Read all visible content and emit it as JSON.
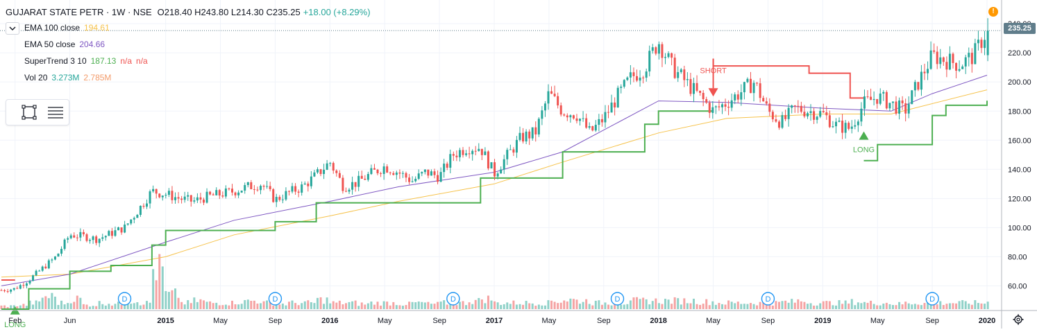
{
  "header": {
    "symbol": "GUJARAT STATE PETR · 1W · NSE",
    "ohlc": "O218.40 H243.80 L214.30 C235.25",
    "change": "+18.00 (+8.29%)"
  },
  "indicators": [
    {
      "name": "EMA 100 close",
      "values": [
        "194.61"
      ],
      "colors": [
        "#f6c24a"
      ]
    },
    {
      "name": "EMA 50 close",
      "values": [
        "204.66"
      ],
      "colors": [
        "#7e57c2"
      ]
    },
    {
      "name": "SuperTrend 3 10",
      "values": [
        "187.13",
        "n/a",
        "n/a"
      ],
      "colors": [
        "#4caf50",
        "#ef5350",
        "#ef5350"
      ]
    },
    {
      "name": "Vol 20",
      "values": [
        "3.273M",
        "2.785M"
      ],
      "colors": [
        "#26a69a",
        "#f39c6b"
      ]
    }
  ],
  "toolbar": {
    "icons": [
      "rectangle-tool-icon",
      "lines-tool-icon"
    ],
    "collapse_icon": "chevron-down-icon",
    "alert_icon": "alert-icon",
    "alert_glyph": "!",
    "settings_icon": "gear-icon"
  },
  "last_price": "235.25",
  "colors": {
    "up": "#26a69a",
    "down": "#ef5350",
    "ema100": "#f6c24a",
    "ema50": "#7e57c2",
    "st_up": "#4caf50",
    "st_down": "#ef5350",
    "vol_up": "#8fd1c8",
    "vol_down": "#f5a3a3",
    "grid": "#f0f3fa",
    "axis_text": "#131722",
    "dividend": "#2196f3"
  },
  "signals": [
    {
      "label": "LONG",
      "color": "#4caf50",
      "date": "2014-02"
    },
    {
      "label": "SHORT",
      "color": "#ef5350",
      "date": "2018-05"
    },
    {
      "label": "LONG",
      "color": "#4caf50",
      "date": "2019-04"
    }
  ],
  "dividend_label": "D",
  "chart_data": {
    "type": "candlestick",
    "title": "GUJARAT STATE PETR · 1W · NSE",
    "y_ticks": [
      "240.00",
      "220.00",
      "200.00",
      "180.00",
      "160.00",
      "140.00",
      "120.00",
      "100.00",
      "80.00",
      "60.00"
    ],
    "ylim": [
      44,
      242
    ],
    "x_ticks": [
      "Feb",
      "Jun",
      "2015",
      "May",
      "Sep",
      "2016",
      "May",
      "Sep",
      "2017",
      "May",
      "Sep",
      "2018",
      "May",
      "Sep",
      "2019",
      "May",
      "Sep",
      "2020"
    ],
    "x_range": [
      "2014-01",
      "2020-01"
    ],
    "price_anchors": [
      [
        "2014-01",
        57
      ],
      [
        "2014-02",
        58
      ],
      [
        "2014-03",
        64
      ],
      [
        "2014-04",
        72
      ],
      [
        "2014-05",
        80
      ],
      [
        "2014-06",
        95
      ],
      [
        "2014-07",
        94
      ],
      [
        "2014-08",
        92
      ],
      [
        "2014-09",
        96
      ],
      [
        "2014-10",
        100
      ],
      [
        "2014-11",
        112
      ],
      [
        "2014-12",
        125
      ],
      [
        "2015-01",
        123
      ],
      [
        "2015-02",
        120
      ],
      [
        "2015-03",
        118
      ],
      [
        "2015-04",
        121
      ],
      [
        "2015-05",
        123
      ],
      [
        "2015-06",
        125
      ],
      [
        "2015-07",
        128
      ],
      [
        "2015-08",
        130
      ],
      [
        "2015-09",
        119
      ],
      [
        "2015-10",
        124
      ],
      [
        "2015-11",
        128
      ],
      [
        "2015-12",
        136
      ],
      [
        "2016-01",
        145
      ],
      [
        "2016-02",
        128
      ],
      [
        "2016-03",
        131
      ],
      [
        "2016-04",
        137
      ],
      [
        "2016-05",
        142
      ],
      [
        "2016-06",
        138
      ],
      [
        "2016-07",
        132
      ],
      [
        "2016-08",
        138
      ],
      [
        "2016-09",
        135
      ],
      [
        "2016-10",
        150
      ],
      [
        "2016-11",
        155
      ],
      [
        "2016-12",
        155
      ],
      [
        "2017-01",
        137
      ],
      [
        "2017-02",
        150
      ],
      [
        "2017-03",
        162
      ],
      [
        "2017-04",
        165
      ],
      [
        "2017-05",
        192
      ],
      [
        "2017-06",
        180
      ],
      [
        "2017-07",
        178
      ],
      [
        "2017-08",
        165
      ],
      [
        "2017-09",
        175
      ],
      [
        "2017-10",
        190
      ],
      [
        "2017-11",
        203
      ],
      [
        "2017-12",
        210
      ],
      [
        "2018-01",
        228
      ],
      [
        "2018-02",
        210
      ],
      [
        "2018-03",
        200
      ],
      [
        "2018-04",
        190
      ],
      [
        "2018-05",
        180
      ],
      [
        "2018-06",
        186
      ],
      [
        "2018-07",
        193
      ],
      [
        "2018-08",
        200
      ],
      [
        "2018-09",
        180
      ],
      [
        "2018-10",
        172
      ],
      [
        "2018-11",
        182
      ],
      [
        "2018-12",
        180
      ],
      [
        "2019-01",
        178
      ],
      [
        "2019-02",
        170
      ],
      [
        "2019-03",
        168
      ],
      [
        "2019-04",
        185
      ],
      [
        "2019-05",
        190
      ],
      [
        "2019-06",
        185
      ],
      [
        "2019-07",
        180
      ],
      [
        "2019-08",
        200
      ],
      [
        "2019-09",
        218
      ],
      [
        "2019-10",
        215
      ],
      [
        "2019-11",
        212
      ],
      [
        "2019-12",
        218
      ],
      [
        "2020-01",
        235.25
      ]
    ],
    "series": [
      {
        "name": "EMA 100 close",
        "points": [
          [
            "2014-01",
            66
          ],
          [
            "2014-06",
            68
          ],
          [
            "2015-01",
            80
          ],
          [
            "2015-06",
            95
          ],
          [
            "2016-01",
            108
          ],
          [
            "2016-06",
            118
          ],
          [
            "2017-01",
            130
          ],
          [
            "2017-06",
            145
          ],
          [
            "2018-01",
            165
          ],
          [
            "2018-06",
            175
          ],
          [
            "2019-01",
            178
          ],
          [
            "2019-06",
            178
          ],
          [
            "2020-01",
            194.61
          ]
        ]
      },
      {
        "name": "EMA 50 close",
        "points": [
          [
            "2014-01",
            60
          ],
          [
            "2014-06",
            68
          ],
          [
            "2015-01",
            90
          ],
          [
            "2015-06",
            105
          ],
          [
            "2016-01",
            118
          ],
          [
            "2016-06",
            128
          ],
          [
            "2017-01",
            138
          ],
          [
            "2017-06",
            152
          ],
          [
            "2018-01",
            187
          ],
          [
            "2018-06",
            186
          ],
          [
            "2019-01",
            182
          ],
          [
            "2019-06",
            180
          ],
          [
            "2019-09",
            192
          ],
          [
            "2020-01",
            204.66
          ]
        ]
      },
      {
        "name": "SuperTrend 3 10",
        "up_points": [
          [
            "2014-01",
            44
          ],
          [
            "2014-03",
            58
          ],
          [
            "2014-06",
            70
          ],
          [
            "2014-09",
            74
          ],
          [
            "2014-12",
            88
          ],
          [
            "2015-01",
            98
          ],
          [
            "2015-08",
            98
          ],
          [
            "2015-09",
            104
          ],
          [
            "2015-11",
            104
          ],
          [
            "2015-12",
            117
          ],
          [
            "2016-11",
            117
          ],
          [
            "2016-12",
            134
          ],
          [
            "2017-05",
            134
          ],
          [
            "2017-06",
            152
          ],
          [
            "2017-11",
            152
          ],
          [
            "2017-12",
            171
          ],
          [
            "2018-01",
            180
          ],
          [
            "2018-05",
            180
          ]
        ],
        "up_points_2": [
          [
            "2019-04",
            146
          ],
          [
            "2019-05",
            157
          ],
          [
            "2019-08",
            157
          ],
          [
            "2019-09",
            177
          ],
          [
            "2019-10",
            184
          ],
          [
            "2020-01",
            184
          ],
          [
            "2020-01",
            187.13
          ]
        ],
        "down_points": [
          [
            "2014-01",
            64
          ],
          [
            "2014-02",
            64
          ],
          [
            "2018-05",
            216
          ],
          [
            "2018-05",
            211
          ],
          [
            "2018-12",
            211
          ],
          [
            "2018-12",
            206
          ],
          [
            "2019-03",
            206
          ],
          [
            "2019-03",
            189
          ],
          [
            "2019-04",
            189
          ]
        ]
      },
      {
        "name": "Vol 20",
        "values_m": [
          1.5,
          2.0,
          3.0,
          6.0,
          3.0,
          5.0,
          2.0,
          3.0,
          2.5,
          4.0,
          3.0,
          19.0,
          7.0,
          3.0,
          4.0,
          3.0,
          3.0,
          3.5,
          4.0,
          3.0,
          2.5,
          3.0,
          3.0,
          4.5,
          3.0,
          3.0,
          2.5,
          3.0,
          3.0,
          2.5,
          3.0,
          2.5,
          3.0,
          3.0,
          4.0,
          5.0,
          3.0,
          3.0,
          3.0,
          3.0,
          4.0,
          4.5,
          4.0,
          3.0,
          3.0,
          3.0,
          4.0,
          4.0,
          4.0,
          4.0,
          4.0,
          3.5,
          3.0,
          3.0,
          3.0,
          3.0,
          3.0,
          3.5,
          4.0,
          3.0,
          3.0,
          3.0,
          3.5,
          3.0,
          3.0,
          2.5,
          3.0,
          3.0,
          3.0,
          3.0,
          3.0,
          3.0,
          3.27
        ]
      }
    ],
    "dividend_dates": [
      "2014-10",
      "2015-09",
      "2016-10",
      "2017-10",
      "2018-09",
      "2019-09"
    ],
    "last": 235.25,
    "grid": true
  }
}
